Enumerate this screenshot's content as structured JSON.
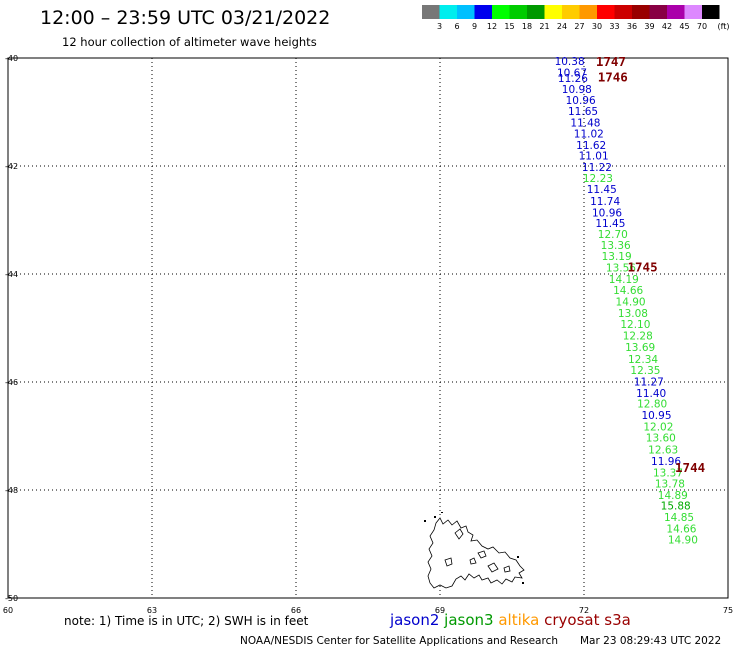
{
  "header": {
    "title": "12:00 – 23:59 UTC 03/21/2022",
    "subtitle": "12 hour collection of altimeter wave heights"
  },
  "colorbar": {
    "colors": [
      "#777777",
      "#00eeee",
      "#00c0ff",
      "#0000ee",
      "#00ff00",
      "#00cc00",
      "#009900",
      "#ffff00",
      "#ffcc00",
      "#ff9900",
      "#ff0000",
      "#cc0000",
      "#990000",
      "#880044",
      "#aa00aa",
      "#dd88ff",
      "#000000"
    ],
    "labels": [
      "3",
      "6",
      "9",
      "12",
      "15",
      "18",
      "21",
      "24",
      "27",
      "30",
      "33",
      "36",
      "39",
      "42",
      "45",
      "70"
    ],
    "unit": "(ft)"
  },
  "map": {
    "lon_range": [
      60,
      75
    ],
    "lat_range": [
      -50,
      -40
    ],
    "lon_ticks": [
      "60",
      "63",
      "66",
      "69",
      "72",
      "75"
    ],
    "lat_ticks": [
      "-40",
      "-42",
      "-44",
      "-46",
      "-48",
      "-50"
    ],
    "grid_color": "#000000"
  },
  "observations": [
    {
      "lon": 71.7,
      "lat": -40.06,
      "value": "10.38",
      "mission": "jason2"
    },
    {
      "lon": 71.75,
      "lat": -40.27,
      "value": "10.67",
      "mission": "jason2"
    },
    {
      "lon": 71.77,
      "lat": -40.37,
      "value": "11.26",
      "mission": "jason2"
    },
    {
      "lon": 71.85,
      "lat": -40.57,
      "value": "10.98",
      "mission": "jason2"
    },
    {
      "lon": 71.93,
      "lat": -40.78,
      "value": "10.96",
      "mission": "jason2"
    },
    {
      "lon": 71.98,
      "lat": -40.98,
      "value": "11.65",
      "mission": "jason2"
    },
    {
      "lon": 72.03,
      "lat": -41.19,
      "value": "11.48",
      "mission": "jason2"
    },
    {
      "lon": 72.1,
      "lat": -41.4,
      "value": "11.02",
      "mission": "jason2"
    },
    {
      "lon": 72.15,
      "lat": -41.61,
      "value": "11.62",
      "mission": "jason2"
    },
    {
      "lon": 72.2,
      "lat": -41.81,
      "value": "11.01",
      "mission": "jason2"
    },
    {
      "lon": 72.27,
      "lat": -42.02,
      "value": "11.22",
      "mission": "jason2"
    },
    {
      "lon": 72.29,
      "lat": -42.22,
      "value": "12.23",
      "mission": "jason3"
    },
    {
      "lon": 72.37,
      "lat": -42.43,
      "value": "11.45",
      "mission": "jason2"
    },
    {
      "lon": 72.44,
      "lat": -42.65,
      "value": "11.74",
      "mission": "jason2"
    },
    {
      "lon": 72.48,
      "lat": -42.86,
      "value": "10.96",
      "mission": "jason2"
    },
    {
      "lon": 72.55,
      "lat": -43.06,
      "value": "11.45",
      "mission": "jason2"
    },
    {
      "lon": 72.6,
      "lat": -43.26,
      "value": "12.70",
      "mission": "jason3"
    },
    {
      "lon": 72.66,
      "lat": -43.46,
      "value": "13.36",
      "mission": "jason3"
    },
    {
      "lon": 72.68,
      "lat": -43.67,
      "value": "13.19",
      "mission": "jason3"
    },
    {
      "lon": 72.77,
      "lat": -43.88,
      "value": "13.56",
      "mission": "jason3"
    },
    {
      "lon": 72.83,
      "lat": -44.09,
      "value": "14.19",
      "mission": "jason3"
    },
    {
      "lon": 72.92,
      "lat": -44.3,
      "value": "14.66",
      "mission": "jason3"
    },
    {
      "lon": 72.97,
      "lat": -44.51,
      "value": "14.90",
      "mission": "jason3"
    },
    {
      "lon": 73.02,
      "lat": -44.72,
      "value": "13.08",
      "mission": "jason3"
    },
    {
      "lon": 73.07,
      "lat": -44.93,
      "value": "12.10",
      "mission": "jason3"
    },
    {
      "lon": 73.12,
      "lat": -45.14,
      "value": "12.28",
      "mission": "jason3"
    },
    {
      "lon": 73.17,
      "lat": -45.35,
      "value": "13.69",
      "mission": "jason3"
    },
    {
      "lon": 73.23,
      "lat": -45.57,
      "value": "12.34",
      "mission": "jason3"
    },
    {
      "lon": 73.28,
      "lat": -45.78,
      "value": "12.35",
      "mission": "jason3"
    },
    {
      "lon": 73.35,
      "lat": -45.99,
      "value": "11.27",
      "mission": "jason2"
    },
    {
      "lon": 73.4,
      "lat": -46.2,
      "value": "11.40",
      "mission": "jason2"
    },
    {
      "lon": 73.42,
      "lat": -46.4,
      "value": "12.80",
      "mission": "jason3"
    },
    {
      "lon": 73.51,
      "lat": -46.61,
      "value": "10.95",
      "mission": "jason2"
    },
    {
      "lon": 73.55,
      "lat": -46.82,
      "value": "12.02",
      "mission": "jason3"
    },
    {
      "lon": 73.6,
      "lat": -47.03,
      "value": "13.60",
      "mission": "jason3"
    },
    {
      "lon": 73.65,
      "lat": -47.25,
      "value": "12.63",
      "mission": "jason3"
    },
    {
      "lon": 73.71,
      "lat": -47.46,
      "value": "11.96",
      "mission": "jason2"
    },
    {
      "lon": 73.75,
      "lat": -47.68,
      "value": "13.37",
      "mission": "jason3"
    },
    {
      "lon": 73.79,
      "lat": -47.88,
      "value": "13.78",
      "mission": "jason3"
    },
    {
      "lon": 73.85,
      "lat": -48.09,
      "value": "14.89",
      "mission": "jason3"
    },
    {
      "lon": 73.91,
      "lat": -48.29,
      "value": "15.88",
      "mission": "jason3_strong"
    },
    {
      "lon": 73.98,
      "lat": -48.5,
      "value": "14.85",
      "mission": "jason3"
    },
    {
      "lon": 74.03,
      "lat": -48.71,
      "value": "14.66",
      "mission": "jason3"
    },
    {
      "lon": 74.06,
      "lat": -48.92,
      "value": "14.90",
      "mission": "jason3"
    }
  ],
  "time_marks": [
    {
      "lon": 72.56,
      "lat": -40.06,
      "label": "1747"
    },
    {
      "lon": 72.6,
      "lat": -40.34,
      "label": "1746"
    },
    {
      "lon": 73.22,
      "lat": -43.86,
      "label": "1745"
    },
    {
      "lon": 74.21,
      "lat": -47.57,
      "label": "1744"
    }
  ],
  "mission_colors": {
    "jason2": "#0000cc",
    "jason3": "#33dd33",
    "jason3_strong": "#00aa00",
    "altika": "#ff9900",
    "cryosat": "#990000",
    "s3a": "#990000"
  },
  "footer": {
    "note": "note:  1) Time is in UTC;  2) SWH is in feet",
    "legend": [
      {
        "name": "jason2",
        "color": "#0000cc"
      },
      {
        "name": "jason3",
        "color": "#009900"
      },
      {
        "name": "altika",
        "color": "#ff9900"
      },
      {
        "name": "cryosat",
        "color": "#990000"
      },
      {
        "name": "s3a",
        "color": "#990000"
      }
    ],
    "credit": "NOAA/NESDIS Center for Satellite Applications and Research",
    "timestamp": "Mar 23 08:29:43 UTC 2022"
  }
}
